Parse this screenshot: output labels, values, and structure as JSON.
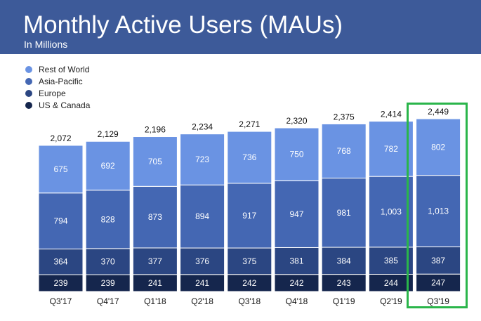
{
  "header": {
    "title": "Monthly Active Users (MAUs)",
    "subtitle": "In Millions"
  },
  "colors": {
    "header_bg": "#3d5a99",
    "highlight": "#2ab54a"
  },
  "chart_data": {
    "type": "bar",
    "stacked": true,
    "title": "Monthly Active Users (MAUs)",
    "subtitle": "In Millions",
    "categories": [
      "Q3'17",
      "Q4'17",
      "Q1'18",
      "Q2'18",
      "Q3'18",
      "Q4'18",
      "Q1'19",
      "Q2'19",
      "Q3'19"
    ],
    "series": [
      {
        "name": "US & Canada",
        "color": "#15264d",
        "values": [
          239,
          239,
          241,
          241,
          242,
          242,
          243,
          244,
          247
        ]
      },
      {
        "name": "Europe",
        "color": "#2b4682",
        "values": [
          364,
          370,
          377,
          376,
          375,
          381,
          384,
          385,
          387
        ]
      },
      {
        "name": "Asia-Pacific",
        "color": "#4467b3",
        "values": [
          794,
          828,
          873,
          894,
          917,
          947,
          981,
          1003,
          1013
        ]
      },
      {
        "name": "Rest of World",
        "color": "#6a93e3",
        "values": [
          675,
          692,
          705,
          723,
          736,
          750,
          768,
          782,
          802
        ]
      }
    ],
    "value_labels": [
      [
        "239",
        "239",
        "241",
        "241",
        "242",
        "242",
        "243",
        "244",
        "247"
      ],
      [
        "364",
        "370",
        "377",
        "376",
        "375",
        "381",
        "384",
        "385",
        "387"
      ],
      [
        "794",
        "828",
        "873",
        "894",
        "917",
        "947",
        "981",
        "1,003",
        "1,013"
      ],
      [
        "675",
        "692",
        "705",
        "723",
        "736",
        "750",
        "768",
        "782",
        "802"
      ]
    ],
    "totals": [
      2072,
      2129,
      2196,
      2234,
      2271,
      2320,
      2375,
      2414,
      2449
    ],
    "total_labels": [
      "2,072",
      "2,129",
      "2,196",
      "2,234",
      "2,271",
      "2,320",
      "2,375",
      "2,414",
      "2,449"
    ],
    "legend": [
      "Rest of World",
      "Asia-Pacific",
      "Europe",
      "US & Canada"
    ],
    "legend_position": "top-left",
    "highlighted_category": "Q3'19",
    "grid": false
  }
}
